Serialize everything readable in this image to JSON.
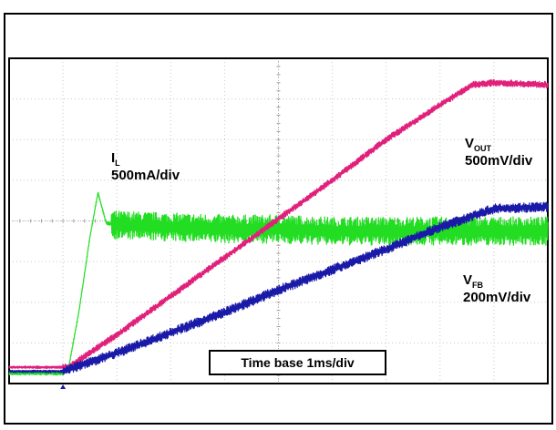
{
  "chart_data": {
    "type": "line",
    "title": "",
    "xlabel": "",
    "ylabel": "",
    "x_unit": "ms",
    "xlim": [
      0,
      10
    ],
    "ylim": [
      0,
      8
    ],
    "grid": true,
    "time_base_label": "Time base 1ms/div",
    "series": [
      {
        "name": "IL",
        "label_main": "I",
        "label_sub": "L",
        "scale": "500mA/div",
        "color": "#22dd22",
        "noise": 0.35,
        "x": [
          0,
          1.0,
          1.1,
          1.3,
          1.5,
          1.65,
          1.8,
          2.0,
          3.0,
          4.0,
          5.0,
          6.0,
          7.0,
          8.0,
          9.0,
          10.0
        ],
        "y": [
          0.25,
          0.25,
          0.35,
          1.8,
          3.6,
          4.7,
          3.95,
          3.9,
          3.85,
          3.8,
          3.8,
          3.75,
          3.75,
          3.75,
          3.75,
          3.75
        ]
      },
      {
        "name": "VOUT",
        "label_main": "V",
        "label_sub": "OUT",
        "scale": "500mV/div",
        "color": "#e0207a",
        "noise": 0.08,
        "x": [
          0,
          1.1,
          2.0,
          3.0,
          4.0,
          5.0,
          6.0,
          7.0,
          8.0,
          8.6,
          9.0,
          10.0
        ],
        "y": [
          0.4,
          0.4,
          1.2,
          2.15,
          3.1,
          4.05,
          5.0,
          6.0,
          6.85,
          7.35,
          7.4,
          7.35
        ]
      },
      {
        "name": "VFB",
        "label_main": "V",
        "label_sub": "FB",
        "scale": "200mV/div",
        "color": "#1a1aa8",
        "noise": 0.12,
        "x": [
          0,
          1.0,
          2.0,
          3.0,
          4.0,
          5.0,
          6.0,
          7.0,
          8.0,
          9.0,
          10.0
        ],
        "y": [
          0.3,
          0.3,
          0.75,
          1.25,
          1.75,
          2.3,
          2.8,
          3.3,
          3.85,
          4.3,
          4.35
        ]
      }
    ]
  }
}
